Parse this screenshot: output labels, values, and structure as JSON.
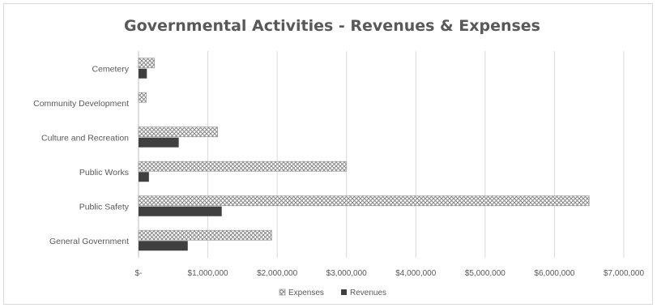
{
  "chart_data": {
    "type": "bar",
    "orientation": "horizontal",
    "title": "Governmental Activities - Revenues & Expenses",
    "categories": [
      "General Government",
      "Public Safety",
      "Public Works",
      "Culture and Recreation",
      "Community Development",
      "Cemetery"
    ],
    "series": [
      {
        "name": "Expenses",
        "values": [
          1920000,
          6500000,
          3000000,
          1140000,
          110000,
          230000
        ],
        "pattern": "crosshatch"
      },
      {
        "name": "Revenues",
        "values": [
          710000,
          1200000,
          150000,
          580000,
          0,
          120000
        ],
        "color": "#404040"
      }
    ],
    "xlim": [
      0,
      7000000
    ],
    "xticks": [
      0,
      1000000,
      2000000,
      3000000,
      4000000,
      5000000,
      6000000,
      7000000
    ],
    "xtick_labels": [
      "$-",
      "$1,000,000",
      "$2,000,000",
      "$3,000,000",
      "$4,000,000",
      "$5,000,000",
      "$6,000,000",
      "$7,000,000"
    ],
    "grid": true,
    "legend_position": "bottom"
  }
}
